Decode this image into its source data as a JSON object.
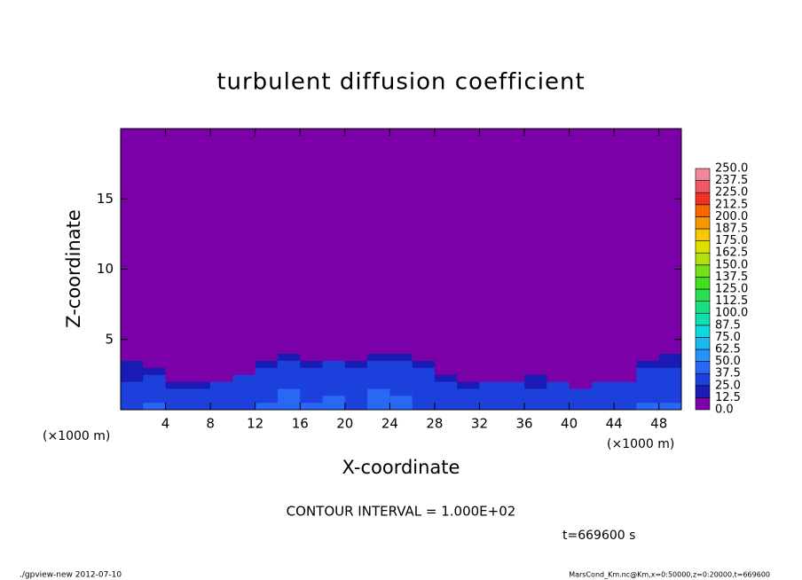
{
  "chart_data": {
    "type": "heatmap",
    "title": "turbulent diffusion coefficient",
    "x_label": "X-coordinate",
    "y_label": "Z-coordinate",
    "x_unit": "(×1000 m)",
    "x_unit_right": "(×1000 m)",
    "contour_note": "CONTOUR INTERVAL = 1.000E+02",
    "time_note": "t=669600 s",
    "footer_left": "./gpview-new  2012-07-10",
    "footer_right": "MarsCond_Km.nc@Km,x=0:50000,z=0:20000,t=669600",
    "xlim": [
      0,
      50
    ],
    "ylim": [
      0,
      20
    ],
    "xticks": [
      4,
      8,
      12,
      16,
      20,
      24,
      28,
      32,
      36,
      40,
      44,
      48
    ],
    "yticks": [
      5,
      10,
      15
    ],
    "xbins": [
      0,
      2,
      4,
      6,
      8,
      10,
      12,
      14,
      16,
      18,
      20,
      22,
      24,
      26,
      28,
      30,
      32,
      34,
      36,
      38,
      40,
      42,
      44,
      46,
      48,
      50
    ],
    "ybins": [
      0,
      0.5,
      1,
      1.5,
      2,
      2.5,
      3,
      3.5,
      4,
      20
    ],
    "values": [
      [
        35,
        38,
        32,
        30,
        33,
        36,
        40,
        45,
        38,
        42,
        37,
        44,
        40,
        36,
        33,
        30,
        32,
        35,
        31,
        33,
        30,
        34,
        36,
        40,
        38
      ],
      [
        30,
        33,
        28,
        27,
        30,
        32,
        37,
        42,
        35,
        40,
        34,
        41,
        38,
        33,
        30,
        28,
        29,
        31,
        28,
        30,
        27,
        31,
        33,
        36,
        35
      ],
      [
        28,
        30,
        25,
        26,
        27,
        30,
        35,
        38,
        33,
        36,
        32,
        38,
        35,
        31,
        28,
        25,
        27,
        28,
        26,
        27,
        25,
        28,
        30,
        33,
        32
      ],
      [
        26,
        28,
        24,
        22,
        25,
        28,
        33,
        35,
        30,
        34,
        30,
        35,
        33,
        29,
        26,
        24,
        25,
        26,
        24,
        26,
        0,
        25,
        27,
        30,
        30
      ],
      [
        24,
        26,
        0,
        0,
        0,
        25,
        30,
        32,
        28,
        31,
        28,
        33,
        31,
        27,
        24,
        0,
        0,
        0,
        22,
        0,
        0,
        0,
        0,
        28,
        28
      ],
      [
        22,
        24,
        0,
        0,
        0,
        0,
        27,
        30,
        26,
        28,
        26,
        30,
        28,
        25,
        0,
        0,
        0,
        0,
        0,
        0,
        0,
        0,
        0,
        25,
        26
      ],
      [
        20,
        0,
        0,
        0,
        0,
        0,
        24,
        27,
        23,
        25,
        23,
        27,
        25,
        22,
        0,
        0,
        0,
        0,
        0,
        0,
        0,
        0,
        0,
        22,
        23
      ],
      [
        0,
        0,
        0,
        0,
        0,
        0,
        0,
        22,
        0,
        0,
        0,
        20,
        21,
        0,
        0,
        0,
        0,
        0,
        0,
        0,
        0,
        0,
        0,
        0,
        19
      ],
      [
        0,
        0,
        0,
        0,
        0,
        0,
        0,
        0,
        0,
        0,
        0,
        0,
        0,
        0,
        0,
        0,
        0,
        0,
        0,
        0,
        0,
        0,
        0,
        0,
        0
      ]
    ],
    "levels": [
      {
        "value": 0,
        "label": "0.0"
      },
      {
        "value": 12.5,
        "label": "12.5"
      },
      {
        "value": 25,
        "label": "25.0"
      },
      {
        "value": 37.5,
        "label": "37.5"
      },
      {
        "value": 50,
        "label": "50.0"
      },
      {
        "value": 62.5,
        "label": "62.5"
      },
      {
        "value": 75,
        "label": "75.0"
      },
      {
        "value": 87.5,
        "label": "87.5"
      },
      {
        "value": 100,
        "label": "100.0"
      },
      {
        "value": 112.5,
        "label": "112.5"
      },
      {
        "value": 125,
        "label": "125.0"
      },
      {
        "value": 137.5,
        "label": "137.5"
      },
      {
        "value": 150,
        "label": "150.0"
      },
      {
        "value": 162.5,
        "label": "162.5"
      },
      {
        "value": 175,
        "label": "175.0"
      },
      {
        "value": 187.5,
        "label": "187.5"
      },
      {
        "value": 200,
        "label": "200.0"
      },
      {
        "value": 212.5,
        "label": "212.5"
      },
      {
        "value": 225,
        "label": "225.0"
      },
      {
        "value": 237.5,
        "label": "237.5"
      },
      {
        "value": 250,
        "label": "250.0"
      }
    ],
    "colors": [
      "#7a00a8",
      "#1a1ab4",
      "#1c40dc",
      "#2868f4",
      "#2890f8",
      "#18b8f0",
      "#10d8e0",
      "#10e0b0",
      "#18e080",
      "#28e050",
      "#40e020",
      "#78e018",
      "#b0e010",
      "#e0e000",
      "#f8c800",
      "#f89800",
      "#f86800",
      "#f03020",
      "#f05868",
      "#f08898"
    ]
  }
}
